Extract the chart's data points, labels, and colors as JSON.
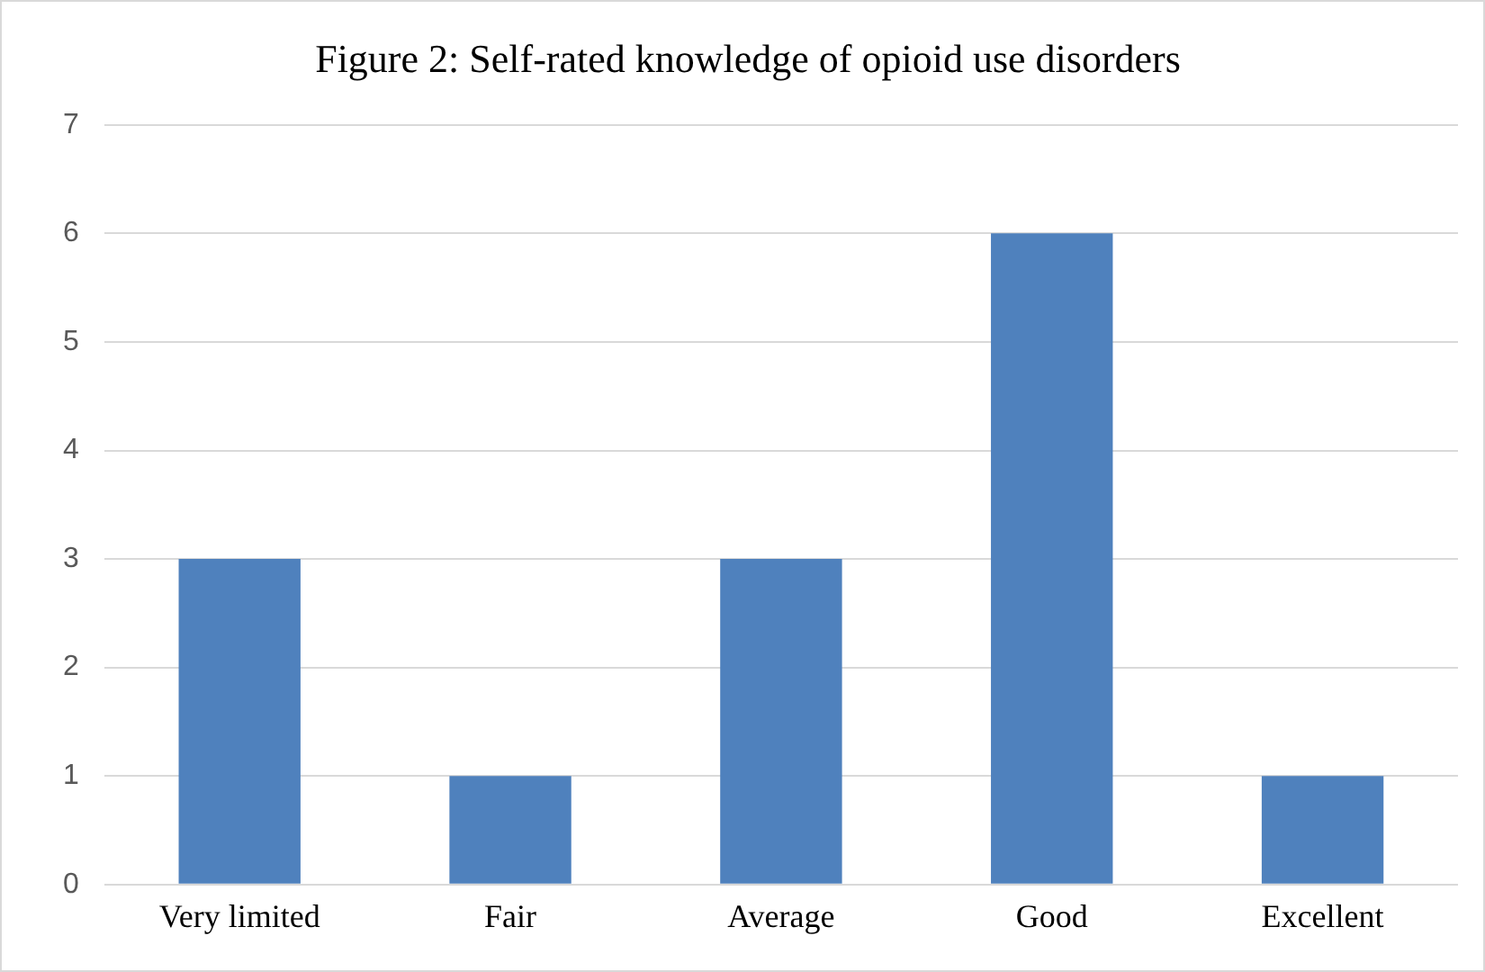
{
  "chart_data": {
    "type": "bar",
    "title": "Figure 2: Self-rated knowledge of opioid use disorders",
    "categories": [
      "Very limited",
      "Fair",
      "Average",
      "Good",
      "Excellent"
    ],
    "values": [
      3,
      1,
      3,
      6,
      1
    ],
    "color": "#4f81bd",
    "ylim": [
      0,
      7
    ],
    "yticks": [
      0,
      1,
      2,
      3,
      4,
      5,
      6,
      7
    ],
    "grid": "y"
  }
}
